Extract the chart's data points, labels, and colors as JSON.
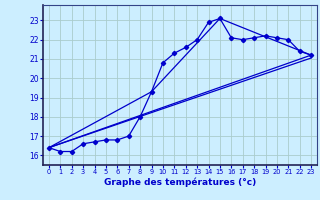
{
  "title": "",
  "xlabel": "Graphe des températures (°c)",
  "ylabel": "",
  "bg_color": "#cceeff",
  "grid_color": "#aacccc",
  "line_color": "#0000cc",
  "spine_color": "#334488",
  "xlim": [
    -0.5,
    23.5
  ],
  "ylim": [
    15.5,
    23.8
  ],
  "yticks": [
    16,
    17,
    18,
    19,
    20,
    21,
    22,
    23
  ],
  "xticks": [
    0,
    1,
    2,
    3,
    4,
    5,
    6,
    7,
    8,
    9,
    10,
    11,
    12,
    13,
    14,
    15,
    16,
    17,
    18,
    19,
    20,
    21,
    22,
    23
  ],
  "series1_x": [
    0,
    1,
    2,
    3,
    4,
    5,
    6,
    7,
    8,
    9,
    10,
    11,
    12,
    13,
    14,
    15,
    16,
    17,
    18,
    19,
    20,
    21,
    22,
    23
  ],
  "series1_y": [
    16.4,
    16.2,
    16.2,
    16.6,
    16.7,
    16.8,
    16.8,
    17.0,
    18.0,
    19.3,
    20.8,
    21.3,
    21.6,
    22.0,
    22.9,
    23.1,
    22.1,
    22.0,
    22.1,
    22.2,
    22.1,
    22.0,
    21.4,
    21.2
  ],
  "series2_x": [
    0,
    9,
    15,
    23
  ],
  "series2_y": [
    16.4,
    19.3,
    23.1,
    21.2
  ],
  "series3_x": [
    0,
    23
  ],
  "series3_y": [
    16.4,
    21.2
  ],
  "series4_x": [
    0,
    23
  ],
  "series4_y": [
    16.4,
    21.05
  ]
}
